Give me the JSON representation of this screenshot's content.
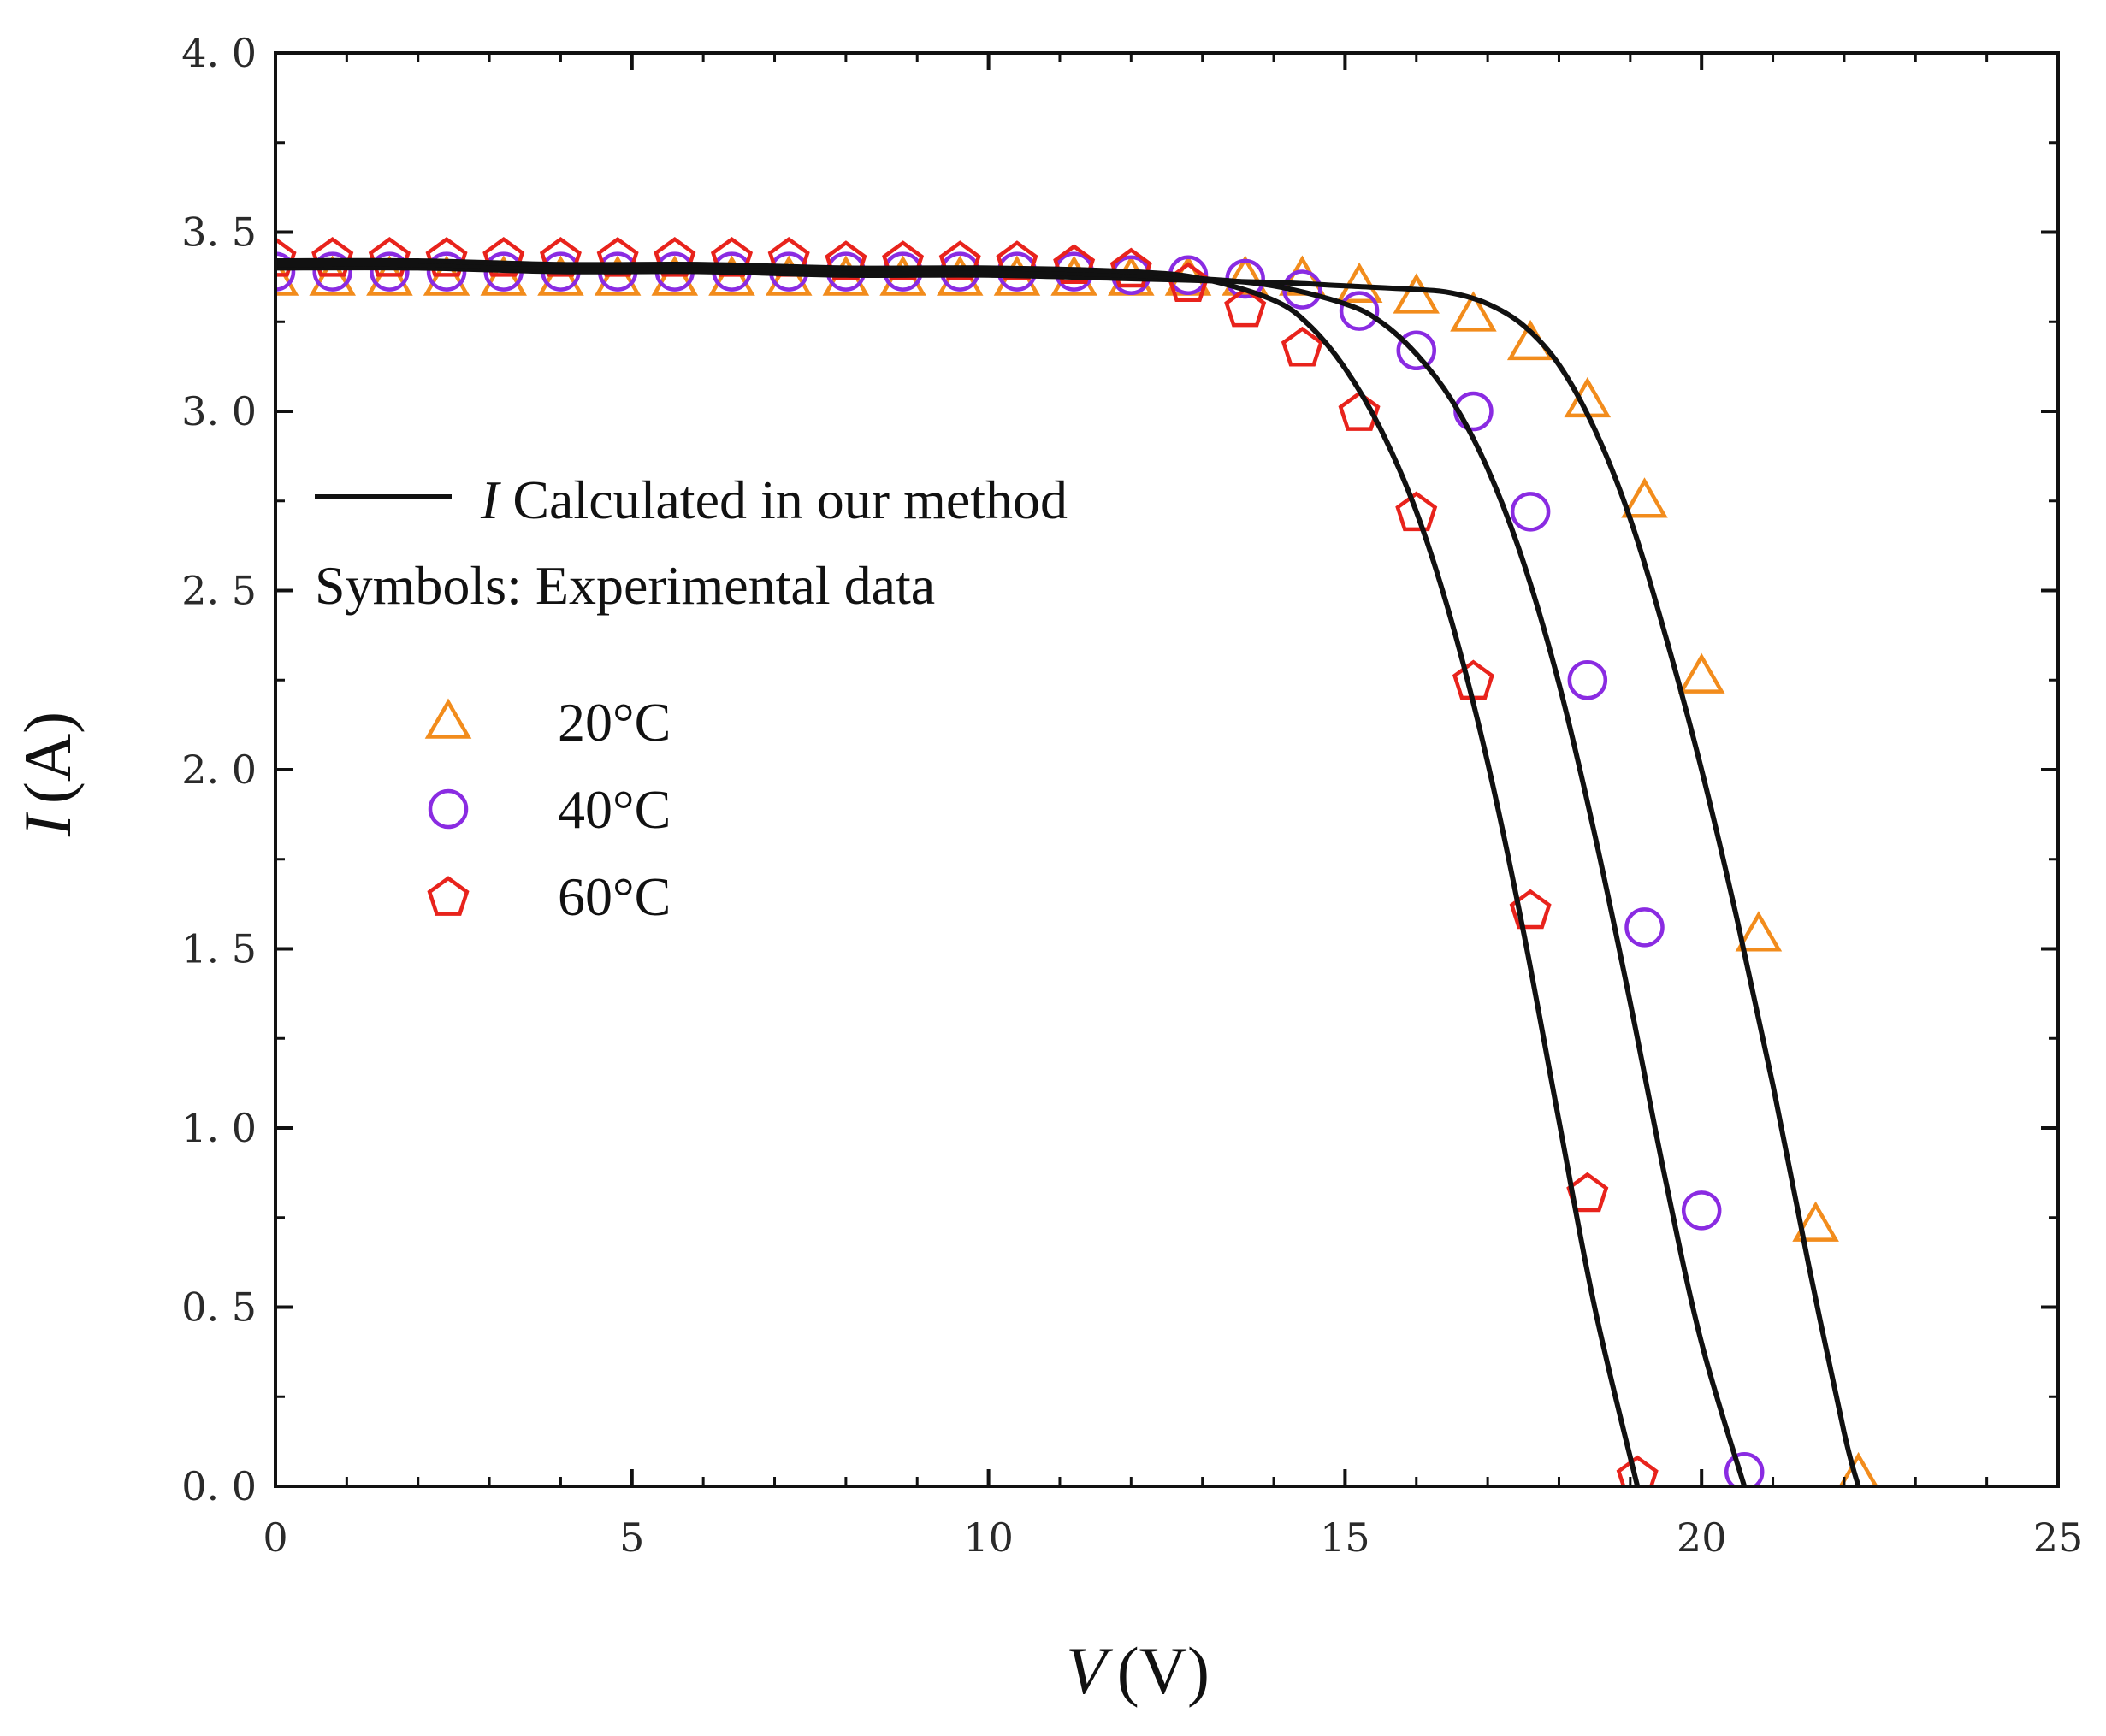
{
  "chart_data": {
    "type": "line",
    "title": "",
    "xlabel": "V (V)",
    "xlabel_var": "V",
    "xlabel_unit": "(V)",
    "ylabel": "I (A)",
    "ylabel_var": "I",
    "ylabel_unit": "(A)",
    "xlim": [
      0,
      25
    ],
    "ylim": [
      0,
      4.0
    ],
    "x_major_ticks": [
      0,
      5,
      10,
      15,
      20,
      25
    ],
    "x_tick_labels": [
      "0",
      "5",
      "10",
      "15",
      "20",
      "25"
    ],
    "y_major_ticks": [
      0,
      0.5,
      1.0,
      1.5,
      2.0,
      2.5,
      3.0,
      3.5,
      4.0
    ],
    "y_tick_labels": [
      "0. 0",
      "0. 5",
      "1. 0",
      "1. 5",
      "2. 0",
      "2. 5",
      "3. 0",
      "3. 5",
      "4. 0"
    ],
    "grid": false,
    "legend": {
      "position": "left",
      "line_label_var": "I",
      "line_label_rest": "Calculated in our method",
      "symbols_label": "Symbols: Experimental data",
      "entries": [
        "20°C",
        "40°C",
        "60°C"
      ]
    },
    "series": [
      {
        "name": "20°C",
        "marker": "triangle",
        "color": "#f28c1c",
        "experimental": {
          "x": [
            0,
            0.8,
            1.6,
            2.4,
            3.2,
            4.0,
            4.8,
            5.6,
            6.4,
            7.2,
            8.0,
            8.8,
            9.6,
            10.4,
            11.2,
            12.0,
            12.8,
            13.6,
            14.4,
            15.2,
            16.0,
            16.8,
            17.6,
            18.4,
            19.2,
            20.0,
            20.8,
            21.6,
            22.2
          ],
          "y": [
            3.37,
            3.37,
            3.37,
            3.37,
            3.37,
            3.37,
            3.37,
            3.37,
            3.37,
            3.37,
            3.37,
            3.37,
            3.37,
            3.37,
            3.37,
            3.37,
            3.37,
            3.37,
            3.37,
            3.35,
            3.32,
            3.27,
            3.19,
            3.03,
            2.75,
            2.26,
            1.54,
            0.73,
            0.03
          ]
        },
        "model": {
          "x": [
            0,
            2,
            4,
            6,
            8,
            10,
            12,
            14,
            15,
            16,
            16.5,
            17,
            17.5,
            18,
            18.5,
            19,
            19.5,
            20,
            20.5,
            21,
            21.5,
            22,
            22.2
          ],
          "y": [
            3.4,
            3.4,
            3.39,
            3.39,
            3.38,
            3.38,
            3.37,
            3.36,
            3.35,
            3.34,
            3.33,
            3.3,
            3.24,
            3.13,
            2.95,
            2.7,
            2.37,
            2.0,
            1.58,
            1.12,
            0.62,
            0.15,
            0.0
          ]
        }
      },
      {
        "name": "40°C",
        "marker": "circle",
        "color": "#8a2be2",
        "experimental": {
          "x": [
            0,
            0.8,
            1.6,
            2.4,
            3.2,
            4.0,
            4.8,
            5.6,
            6.4,
            7.2,
            8.0,
            8.8,
            9.6,
            10.4,
            11.2,
            12.0,
            12.8,
            13.6,
            14.4,
            15.2,
            16.0,
            16.8,
            17.6,
            18.4,
            19.2,
            20.0,
            20.6
          ],
          "y": [
            3.39,
            3.39,
            3.39,
            3.39,
            3.39,
            3.39,
            3.39,
            3.39,
            3.39,
            3.39,
            3.39,
            3.39,
            3.39,
            3.39,
            3.39,
            3.38,
            3.38,
            3.37,
            3.34,
            3.28,
            3.17,
            3.0,
            2.72,
            2.25,
            1.56,
            0.77,
            0.04
          ]
        },
        "model": {
          "x": [
            0,
            2,
            4,
            6,
            8,
            10,
            12,
            13,
            14,
            15,
            15.5,
            16,
            16.5,
            17,
            17.5,
            18,
            18.5,
            19,
            19.5,
            20,
            20.6
          ],
          "y": [
            3.41,
            3.41,
            3.4,
            3.4,
            3.39,
            3.39,
            3.38,
            3.37,
            3.35,
            3.3,
            3.25,
            3.16,
            3.03,
            2.84,
            2.58,
            2.24,
            1.82,
            1.35,
            0.85,
            0.4,
            0.0
          ]
        }
      },
      {
        "name": "60°C",
        "marker": "pentagon",
        "color": "#e8231c",
        "experimental": {
          "x": [
            0,
            0.8,
            1.6,
            2.4,
            3.2,
            4.0,
            4.8,
            5.6,
            6.4,
            7.2,
            8.0,
            8.8,
            9.6,
            10.4,
            11.2,
            12.0,
            12.8,
            13.6,
            14.4,
            15.2,
            16.0,
            16.8,
            17.6,
            18.4,
            19.1
          ],
          "y": [
            3.43,
            3.43,
            3.43,
            3.43,
            3.43,
            3.43,
            3.43,
            3.43,
            3.43,
            3.43,
            3.42,
            3.42,
            3.42,
            3.42,
            3.41,
            3.4,
            3.36,
            3.29,
            3.18,
            3.0,
            2.72,
            2.25,
            1.61,
            0.82,
            0.03
          ]
        },
        "model": {
          "x": [
            0,
            2,
            4,
            6,
            8,
            10,
            12,
            13,
            14,
            14.5,
            15,
            15.5,
            16,
            16.5,
            17,
            17.5,
            18,
            18.5,
            19.1
          ],
          "y": [
            3.42,
            3.42,
            3.41,
            3.41,
            3.4,
            3.4,
            3.39,
            3.37,
            3.31,
            3.24,
            3.12,
            2.95,
            2.72,
            2.41,
            2.02,
            1.55,
            1.02,
            0.5,
            0.0
          ]
        }
      }
    ]
  }
}
